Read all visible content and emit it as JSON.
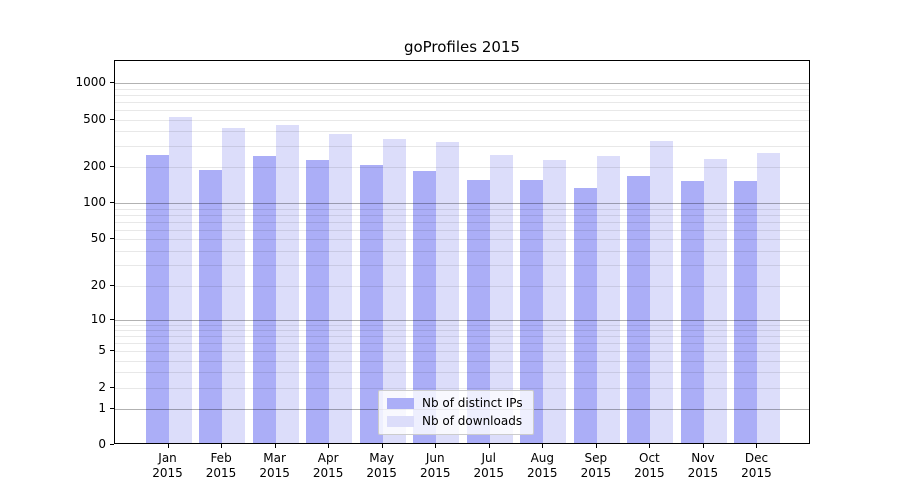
{
  "chart_data": {
    "type": "bar",
    "title": "goProfiles 2015",
    "categories": [
      "Jan",
      "Feb",
      "Mar",
      "Apr",
      "May",
      "Jun",
      "Jul",
      "Aug",
      "Sep",
      "Oct",
      "Nov",
      "Dec"
    ],
    "category_year": "2015",
    "series": [
      {
        "name": "Nb of distinct IPs",
        "color": "#abaef7",
        "values": [
          245,
          183,
          242,
          224,
          200,
          180,
          152,
          152,
          130,
          163,
          148,
          149
        ]
      },
      {
        "name": "Nb of downloads",
        "color": "#dcddfa",
        "values": [
          510,
          413,
          435,
          366,
          333,
          312,
          243,
          224,
          239,
          319,
          225,
          255
        ]
      }
    ],
    "yscale": "log1p",
    "ylabel": "",
    "xlabel": "",
    "yticks": [
      0,
      1,
      2,
      5,
      10,
      20,
      50,
      100,
      200,
      500,
      1000
    ],
    "minor_gridlines": [
      2,
      3,
      4,
      5,
      6,
      7,
      8,
      9,
      20,
      30,
      40,
      50,
      60,
      70,
      80,
      90,
      200,
      300,
      400,
      500,
      600,
      700,
      800,
      900
    ],
    "major_gridlines": [
      1,
      10,
      100,
      1000
    ],
    "grid": true,
    "legend_position": "bottom-center",
    "axis_color": "#000000",
    "background_color": "#ffffff"
  }
}
